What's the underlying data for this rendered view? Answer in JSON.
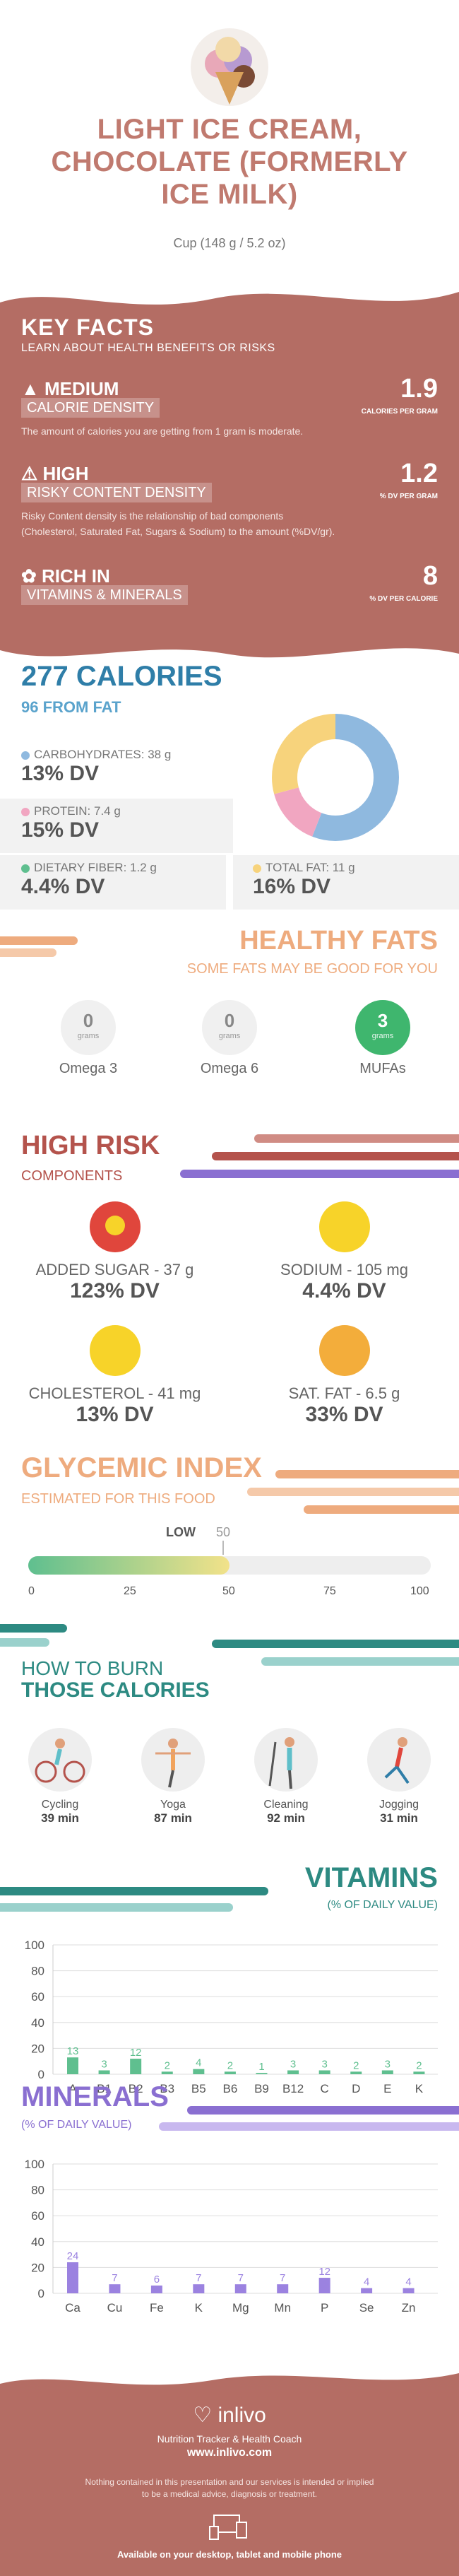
{
  "header": {
    "title_lines": [
      "LIGHT ICE CREAM,",
      "CHOCOLATE (FORMERLY",
      "ICE MILK)"
    ],
    "serving": "Cup (148 g / 5.2 oz)"
  },
  "key_facts": {
    "title": "KEY FACTS",
    "subtitle": "LEARN ABOUT HEALTH BENEFITS OR RISKS",
    "calorie_density": {
      "level": "MEDIUM",
      "label": "CALORIE DENSITY",
      "value": "1.9",
      "unit": "CALORIES PER GRAM",
      "desc": "The amount of calories you are getting from 1 gram is moderate."
    },
    "risky_content": {
      "level": "HIGH",
      "label": "RISKY CONTENT DENSITY",
      "value": "1.2",
      "unit": "% DV PER GRAM",
      "desc1": "Risky Content density is the relationship of bad components",
      "desc2": "(Cholesterol, Saturated Fat, Sugars & Sodium) to the amount (%DV/gr)."
    },
    "vitamins": {
      "level": "RICH  IN",
      "label": "VITAMINS & MINERALS",
      "value": "8",
      "unit": "% DV PER CALORIE"
    }
  },
  "calories": {
    "title": "277 CALORIES",
    "from_fat": "96 FROM FAT",
    "carbs": {
      "label": "CARBOHYDRATES: 38 g",
      "dv": "13% DV",
      "color": "#8fb9df"
    },
    "protein": {
      "label": "PROTEIN: 7.4 g",
      "dv": "15% DV",
      "color": "#f1a6c1"
    },
    "fiber": {
      "label": "DIETARY FIBER: 1.2 g",
      "dv": "4.4% DV",
      "color": "#5fbf8f"
    },
    "fat": {
      "label": "TOTAL FAT: 11 g",
      "dv": "16% DV",
      "color": "#f7d37c"
    }
  },
  "healthy_fats": {
    "title": "HEALTHY FATS",
    "subtitle": "SOME FATS MAY BE GOOD FOR YOU",
    "items": [
      {
        "value": "0",
        "unit": "grams",
        "label": "Omega 3"
      },
      {
        "value": "0",
        "unit": "grams",
        "label": "Omega 6"
      },
      {
        "value": "3",
        "unit": "grams",
        "label": "MUFAs"
      }
    ]
  },
  "high_risk": {
    "title": "HIGH RISK",
    "subtitle": "COMPONENTS",
    "items": [
      {
        "label": "ADDED SUGAR - 37 g",
        "dv": "123% DV",
        "color": "#e0463c"
      },
      {
        "label": "SODIUM - 105 mg",
        "dv": "4.4% DV",
        "color": "#f7d329"
      },
      {
        "label": "CHOLESTEROL - 41 mg",
        "dv": "13% DV",
        "color": "#f7d329"
      },
      {
        "label": "SAT. FAT - 6.5 g",
        "dv": "33% DV",
        "color": "#f3ad3b"
      }
    ]
  },
  "glycemic": {
    "title": "GLYCEMIC INDEX",
    "subtitle": "ESTIMATED FOR THIS FOOD",
    "level": "LOW",
    "value": 50,
    "value_label": "50",
    "ticks": [
      "0",
      "25",
      "50",
      "75",
      "100"
    ]
  },
  "burn": {
    "title_line1": "HOW TO BURN",
    "title_line2": "THOSE CALORIES",
    "items": [
      {
        "activity": "Cycling",
        "time": "39 min",
        "icon": "cycling-icon"
      },
      {
        "activity": "Yoga",
        "time": "87 min",
        "icon": "yoga-icon"
      },
      {
        "activity": "Cleaning",
        "time": "92 min",
        "icon": "cleaning-icon"
      },
      {
        "activity": "Jogging",
        "time": "31 min",
        "icon": "jogging-icon"
      }
    ]
  },
  "chart_data": [
    {
      "type": "bar",
      "title": "VITAMINS",
      "subtitle": "(% OF DAILY VALUE)",
      "categories": [
        "A",
        "B1",
        "B2",
        "B3",
        "B5",
        "B6",
        "B9",
        "B12",
        "C",
        "D",
        "E",
        "K"
      ],
      "values": [
        13,
        3,
        12,
        2,
        4,
        2,
        1,
        3,
        3,
        2,
        3,
        2
      ],
      "value_labels": [
        "13",
        "3",
        "12",
        "2",
        "4",
        "2",
        "1",
        "3",
        "3",
        "2",
        "3",
        "2"
      ],
      "yticks": [
        "100",
        "80",
        "60",
        "40",
        "20",
        "0"
      ],
      "ylim": [
        0,
        100
      ],
      "color": "#5fbf8f"
    },
    {
      "type": "bar",
      "title": "MINERALS",
      "subtitle": "(% OF DAILY VALUE)",
      "categories": [
        "Ca",
        "Cu",
        "Fe",
        "K",
        "Mg",
        "Mn",
        "P",
        "Se",
        "Zn"
      ],
      "values": [
        24,
        7,
        6,
        7,
        7,
        7,
        12,
        4,
        4
      ],
      "value_labels": [
        "24",
        "7",
        "6",
        "7",
        "7",
        "7",
        "12",
        "4",
        "4"
      ],
      "yticks": [
        "100",
        "80",
        "60",
        "40",
        "20",
        "0"
      ],
      "ylim": [
        0,
        100
      ],
      "color": "#9b82e0"
    }
  ],
  "footer": {
    "brand": "inlivo",
    "tagline": "Nutrition Tracker & Health Coach",
    "url": "www.inlivo.com",
    "disclaimer1": "Nothing contained in this presentation and our services is intended or implied",
    "disclaimer2": "to be a medical advice, diagnosis or treatment.",
    "available": "Available on your desktop, tablet and mobile phone"
  }
}
